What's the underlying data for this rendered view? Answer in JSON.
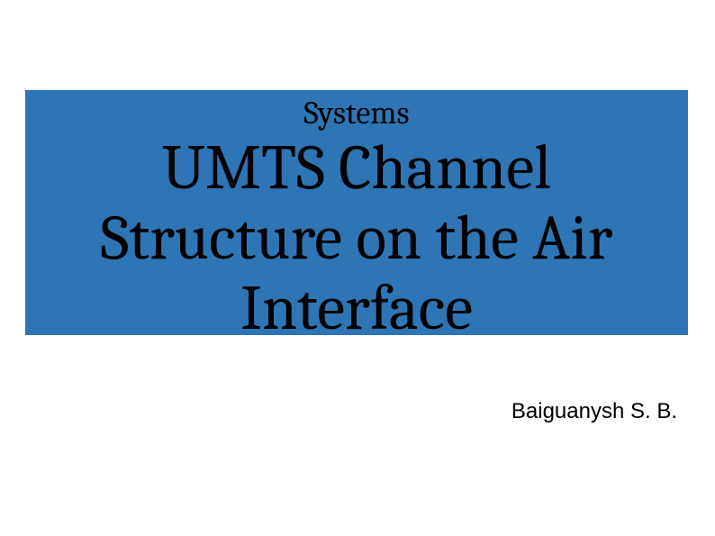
{
  "slide": {
    "background_color": "#ffffff",
    "title_block": {
      "background_color": "#2e75b6",
      "subtitle_top": "Systems",
      "main_title": "UMTS Channel\nStructure on the Air\nInterface",
      "subtitle_fontsize": 36,
      "title_fontsize": 70,
      "text_color": "#000000",
      "font_family": "Cambria"
    },
    "author": {
      "text": "Baiguanysh S. B.",
      "fontsize": 24,
      "font_family": "Arial",
      "color": "#000000"
    }
  }
}
